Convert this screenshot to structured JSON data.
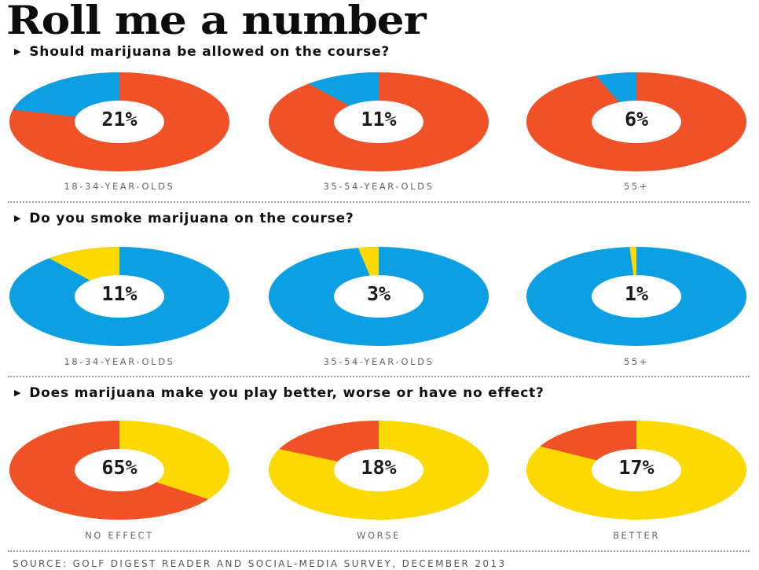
{
  "title": "Roll me a number",
  "colors": {
    "red": "#f05126",
    "blue": "#0c9fe3",
    "yellow": "#fcd900"
  },
  "sections": [
    {
      "question": "Should marijuana be allowed on the course?"
    },
    {
      "question": "Do you smoke marijuana on the course?"
    },
    {
      "question": "Does marijuana make you play better, worse or have no effect?"
    }
  ],
  "chart_data": [
    {
      "type": "pie",
      "title": "Should marijuana be allowed on the course?",
      "slices": [
        {
          "category": "18-34-YEAR-OLDS",
          "value": 21,
          "label": "21%",
          "highlight_color": "#0c9fe3",
          "base_color": "#f05126"
        },
        {
          "category": "35-54-YEAR-OLDS",
          "value": 11,
          "label": "11%",
          "highlight_color": "#0c9fe3",
          "base_color": "#f05126"
        },
        {
          "category": "55+",
          "value": 6,
          "label": "6%",
          "highlight_color": "#0c9fe3",
          "base_color": "#f05126"
        }
      ]
    },
    {
      "type": "pie",
      "title": "Do you smoke marijuana on the course?",
      "slices": [
        {
          "category": "18-34-YEAR-OLDS",
          "value": 11,
          "label": "11%",
          "highlight_color": "#fcd900",
          "base_color": "#0c9fe3"
        },
        {
          "category": "35-54-YEAR-OLDS",
          "value": 3,
          "label": "3%",
          "highlight_color": "#fcd900",
          "base_color": "#0c9fe3"
        },
        {
          "category": "55+",
          "value": 1,
          "label": "1%",
          "highlight_color": "#fcd900",
          "base_color": "#0c9fe3"
        }
      ]
    },
    {
      "type": "pie",
      "title": "Does marijuana make you play better, worse or have no effect?",
      "slices": [
        {
          "category": "NO EFFECT",
          "value": 65,
          "label": "65%",
          "highlight_color": "#f05126",
          "base_color": "#fcd900"
        },
        {
          "category": "WORSE",
          "value": 18,
          "label": "18%",
          "highlight_color": "#f05126",
          "base_color": "#fcd900"
        },
        {
          "category": "BETTER",
          "value": 17,
          "label": "17%",
          "highlight_color": "#f05126",
          "base_color": "#fcd900"
        }
      ]
    }
  ],
  "source": "SOURCE: GOLF DIGEST READER AND SOCIAL-MEDIA SURVEY, DECEMBER 2013"
}
